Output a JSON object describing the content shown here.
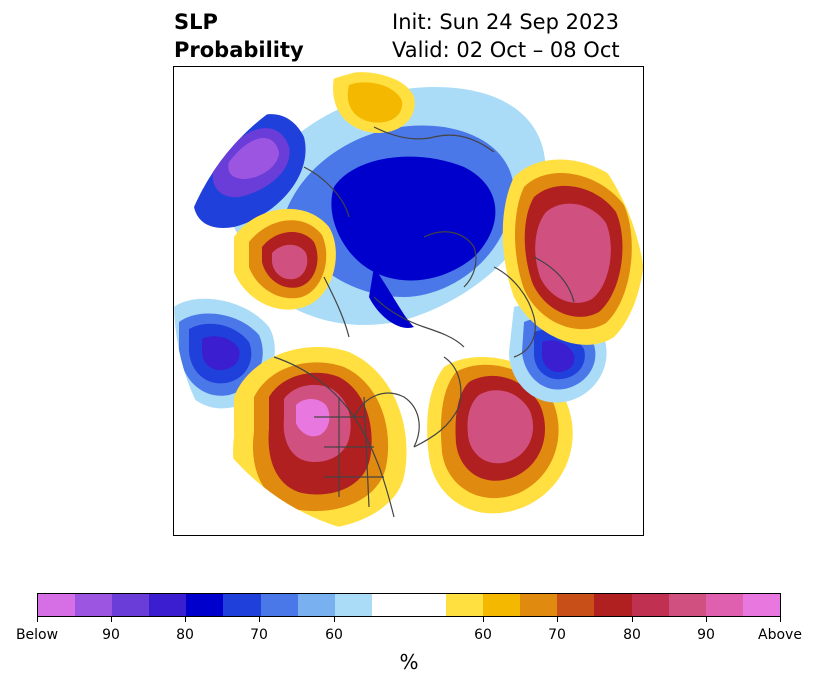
{
  "title": {
    "left_line1": "SLP",
    "left_line2": "Probability",
    "right_line1": "Init: Sun 24 Sep 2023",
    "right_line2": "Valid: 02 Oct – 08 Oct"
  },
  "colorbar": {
    "unit": "%",
    "tick_labels": [
      "Below",
      "90",
      "80",
      "70",
      "60",
      "60",
      "70",
      "80",
      "90",
      "Above"
    ],
    "colors": [
      "#d66fe6",
      "#9b55e0",
      "#6a3cd8",
      "#3a1ed0",
      "#0000cc",
      "#2040dc",
      "#4a78e8",
      "#78b0f0",
      "#aadcf8",
      "#ffffff",
      "#ffe040",
      "#f4b800",
      "#e08a10",
      "#c85018",
      "#b02020",
      "#c03050",
      "#d05080",
      "#e060b0",
      "#e878e0"
    ]
  },
  "map": {
    "projection": "north polar stereographic",
    "colors": {
      "below_weak": "#aadcf8",
      "below_light": "#78b0f0",
      "below_mid": "#4a78e8",
      "below_strong": "#2040dc",
      "below_deep": "#0000cc",
      "below_extreme": "#3a1ed0",
      "below_max": "#9b55e0",
      "above_weak": "#ffe040",
      "above_light": "#f4b800",
      "above_mid": "#e08a10",
      "above_strong": "#c85018",
      "above_deep": "#b02020",
      "above_extreme": "#c03050",
      "above_max": "#e060b0",
      "coast": "#444444"
    }
  }
}
